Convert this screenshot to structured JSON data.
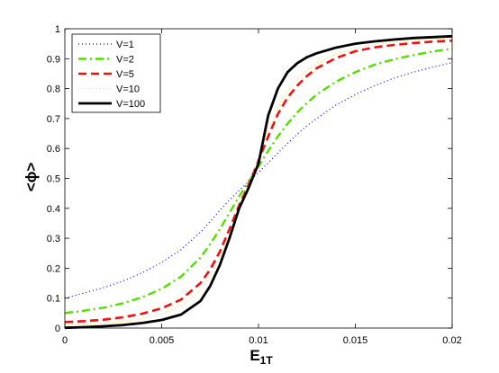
{
  "chart_data": {
    "type": "line",
    "title": "",
    "xlabel": "E",
    "xlabel_subscript": "1T",
    "ylabel": "<ϕ>",
    "xlim": [
      0,
      0.02
    ],
    "ylim": [
      0,
      1
    ],
    "xticks": [
      0,
      0.005,
      0.01,
      0.015,
      0.02
    ],
    "xtick_labels": [
      "0",
      "0.005",
      "0.01",
      "0.015",
      "0.02"
    ],
    "yticks": [
      0,
      0.1,
      0.2,
      0.3,
      0.4,
      0.5,
      0.6,
      0.7,
      0.8,
      0.9,
      1
    ],
    "ytick_labels": [
      "0",
      "0.1",
      "0.2",
      "0.3",
      "0.4",
      "0.5",
      "0.6",
      "0.7",
      "0.8",
      "0.9",
      "1"
    ],
    "grid": false,
    "legend_position": "top-left",
    "x": [
      0,
      0.001,
      0.002,
      0.003,
      0.004,
      0.005,
      0.006,
      0.007,
      0.0075,
      0.008,
      0.0085,
      0.009,
      0.0095,
      0.01,
      0.0105,
      0.011,
      0.0115,
      0.012,
      0.0125,
      0.013,
      0.014,
      0.015,
      0.016,
      0.017,
      0.018,
      0.019,
      0.02
    ],
    "series": [
      {
        "name": "V=1",
        "color": "#0000ff",
        "style": "dotted",
        "values": [
          0.1,
          0.117,
          0.135,
          0.157,
          0.185,
          0.219,
          0.262,
          0.32,
          0.356,
          0.393,
          0.428,
          0.46,
          0.49,
          0.52,
          0.552,
          0.585,
          0.617,
          0.648,
          0.676,
          0.7,
          0.745,
          0.78,
          0.81,
          0.835,
          0.855,
          0.872,
          0.887
        ]
      },
      {
        "name": "V=2",
        "color": "#55dd00",
        "style": "dashdot",
        "values": [
          0.05,
          0.058,
          0.068,
          0.083,
          0.103,
          0.131,
          0.172,
          0.235,
          0.28,
          0.33,
          0.385,
          0.44,
          0.49,
          0.54,
          0.592,
          0.64,
          0.683,
          0.72,
          0.752,
          0.78,
          0.823,
          0.855,
          0.88,
          0.898,
          0.912,
          0.924,
          0.933
        ]
      },
      {
        "name": "V=5",
        "color": "#ee1111",
        "style": "dashed",
        "values": [
          0.02,
          0.023,
          0.028,
          0.036,
          0.048,
          0.066,
          0.095,
          0.15,
          0.195,
          0.255,
          0.33,
          0.41,
          0.48,
          0.56,
          0.64,
          0.715,
          0.77,
          0.81,
          0.842,
          0.868,
          0.902,
          0.925,
          0.938,
          0.946,
          0.952,
          0.957,
          0.96
        ]
      },
      {
        "name": "V=10",
        "color": "#ffdd44",
        "style": "dotted",
        "values": [
          0.01,
          0.012,
          0.016,
          0.022,
          0.032,
          0.047,
          0.073,
          0.125,
          0.172,
          0.235,
          0.315,
          0.405,
          0.48,
          0.565,
          0.655,
          0.735,
          0.793,
          0.832,
          0.862,
          0.885,
          0.915,
          0.935,
          0.947,
          0.955,
          0.96,
          0.964,
          0.967
        ]
      },
      {
        "name": "V=100",
        "color": "#000000",
        "style": "solid",
        "values": [
          0.001,
          0.003,
          0.006,
          0.01,
          0.017,
          0.027,
          0.045,
          0.09,
          0.14,
          0.21,
          0.3,
          0.4,
          0.47,
          0.55,
          0.71,
          0.8,
          0.855,
          0.885,
          0.905,
          0.918,
          0.937,
          0.95,
          0.958,
          0.964,
          0.969,
          0.972,
          0.975
        ]
      }
    ]
  }
}
